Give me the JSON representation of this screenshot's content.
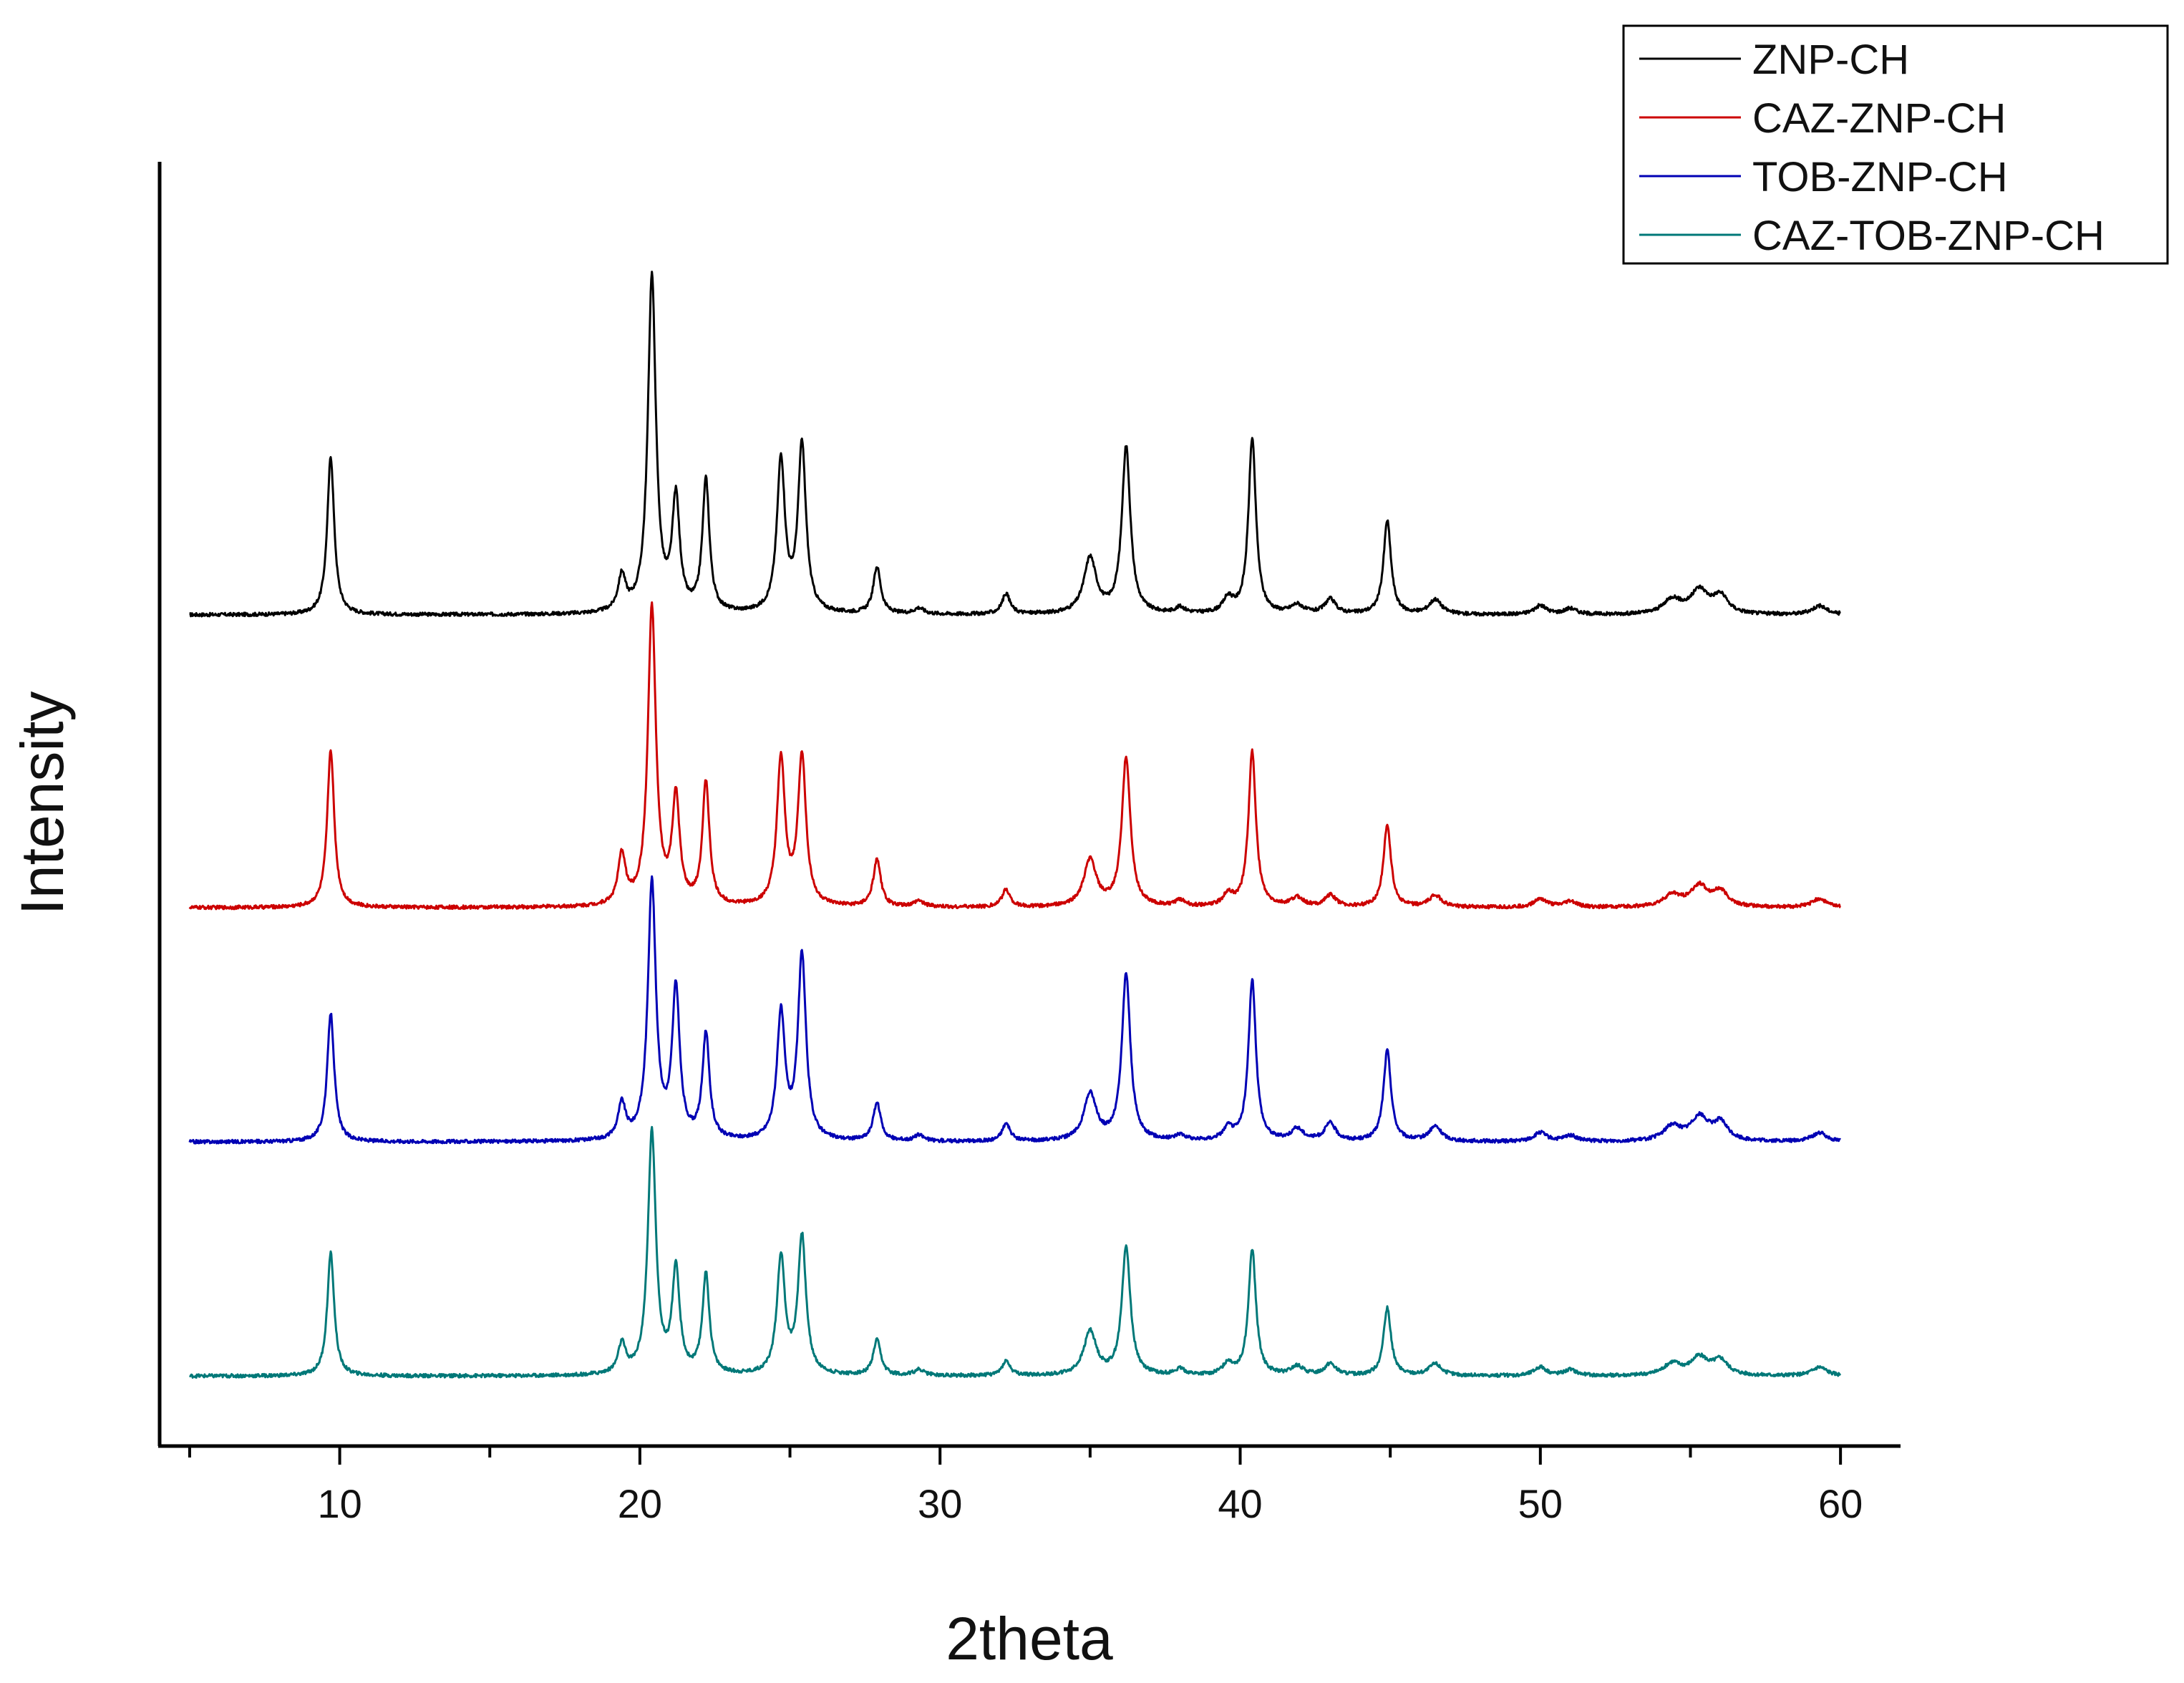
{
  "chart_data": {
    "type": "line",
    "title": "",
    "xlabel": "2theta",
    "ylabel": "Intensity",
    "xlim": [
      4.0,
      62.0
    ],
    "xticks": [
      10,
      20,
      30,
      40,
      50,
      60
    ],
    "x_minor_ticks": [
      5,
      15,
      25,
      35,
      45,
      55
    ],
    "x_tick_labels": [
      "10",
      "20",
      "30",
      "40",
      "50",
      "60"
    ],
    "yticks_shown": false,
    "grid": false,
    "legend_position": "top-right",
    "series": [
      {
        "name": "ZNP-CH",
        "color": "#000000",
        "baseline": 1.0,
        "peaks": [
          [
            9.7,
            0.54,
            0.14
          ],
          [
            19.4,
            0.12,
            0.15
          ],
          [
            20.4,
            1.15,
            0.16
          ],
          [
            21.2,
            0.38,
            0.15
          ],
          [
            22.2,
            0.45,
            0.14
          ],
          [
            24.7,
            0.52,
            0.16
          ],
          [
            25.4,
            0.57,
            0.16
          ],
          [
            27.9,
            0.16,
            0.15
          ],
          [
            29.3,
            0.02,
            0.2
          ],
          [
            32.2,
            0.07,
            0.16
          ],
          [
            35.0,
            0.19,
            0.25
          ],
          [
            36.2,
            0.57,
            0.17
          ],
          [
            38.0,
            0.02,
            0.2
          ],
          [
            39.6,
            0.05,
            0.2
          ],
          [
            40.4,
            0.6,
            0.15
          ],
          [
            41.9,
            0.03,
            0.25
          ],
          [
            43.0,
            0.05,
            0.22
          ],
          [
            44.9,
            0.32,
            0.15
          ],
          [
            46.5,
            0.05,
            0.25
          ],
          [
            50.0,
            0.03,
            0.25
          ],
          [
            51.0,
            0.02,
            0.25
          ],
          [
            54.4,
            0.05,
            0.35
          ],
          [
            55.3,
            0.08,
            0.35
          ],
          [
            56.0,
            0.06,
            0.3
          ],
          [
            59.3,
            0.03,
            0.3
          ]
        ]
      },
      {
        "name": "CAZ-ZNP-CH",
        "color": "#cc0000",
        "baseline": 0.0,
        "peaks": [
          [
            9.7,
            0.54,
            0.14
          ],
          [
            19.4,
            0.17,
            0.15
          ],
          [
            20.4,
            1.02,
            0.16
          ],
          [
            21.2,
            0.36,
            0.15
          ],
          [
            22.2,
            0.42,
            0.14
          ],
          [
            24.7,
            0.5,
            0.16
          ],
          [
            25.4,
            0.51,
            0.16
          ],
          [
            27.9,
            0.16,
            0.15
          ],
          [
            29.3,
            0.02,
            0.2
          ],
          [
            32.2,
            0.06,
            0.16
          ],
          [
            35.0,
            0.16,
            0.25
          ],
          [
            36.2,
            0.51,
            0.17
          ],
          [
            38.0,
            0.02,
            0.2
          ],
          [
            39.6,
            0.04,
            0.2
          ],
          [
            40.4,
            0.53,
            0.15
          ],
          [
            41.9,
            0.03,
            0.25
          ],
          [
            43.0,
            0.04,
            0.22
          ],
          [
            44.9,
            0.28,
            0.15
          ],
          [
            46.5,
            0.04,
            0.25
          ],
          [
            50.0,
            0.03,
            0.25
          ],
          [
            51.0,
            0.02,
            0.25
          ],
          [
            54.4,
            0.04,
            0.35
          ],
          [
            55.3,
            0.07,
            0.35
          ],
          [
            56.0,
            0.05,
            0.3
          ],
          [
            59.3,
            0.03,
            0.3
          ]
        ]
      },
      {
        "name": "TOB-ZNP-CH",
        "color": "#0000b4",
        "baseline": -0.8,
        "peaks": [
          [
            9.7,
            0.44,
            0.14
          ],
          [
            19.4,
            0.12,
            0.15
          ],
          [
            20.4,
            0.88,
            0.16
          ],
          [
            21.2,
            0.51,
            0.15
          ],
          [
            22.2,
            0.36,
            0.14
          ],
          [
            24.7,
            0.43,
            0.16
          ],
          [
            25.4,
            0.63,
            0.16
          ],
          [
            27.9,
            0.13,
            0.15
          ],
          [
            29.3,
            0.02,
            0.2
          ],
          [
            32.2,
            0.06,
            0.16
          ],
          [
            35.0,
            0.16,
            0.25
          ],
          [
            36.2,
            0.57,
            0.17
          ],
          [
            38.0,
            0.02,
            0.2
          ],
          [
            39.6,
            0.04,
            0.2
          ],
          [
            40.4,
            0.55,
            0.15
          ],
          [
            41.9,
            0.04,
            0.25
          ],
          [
            43.0,
            0.06,
            0.22
          ],
          [
            44.9,
            0.31,
            0.15
          ],
          [
            46.5,
            0.05,
            0.25
          ],
          [
            50.0,
            0.03,
            0.25
          ],
          [
            51.0,
            0.02,
            0.25
          ],
          [
            54.4,
            0.05,
            0.35
          ],
          [
            55.3,
            0.08,
            0.35
          ],
          [
            56.0,
            0.06,
            0.3
          ],
          [
            59.3,
            0.03,
            0.3
          ]
        ]
      },
      {
        "name": "CAZ-TOB-ZNP-CH",
        "color": "#007878",
        "baseline": -1.6,
        "peaks": [
          [
            9.7,
            0.42,
            0.14
          ],
          [
            19.4,
            0.1,
            0.15
          ],
          [
            20.4,
            0.83,
            0.16
          ],
          [
            21.2,
            0.35,
            0.15
          ],
          [
            22.2,
            0.34,
            0.14
          ],
          [
            24.7,
            0.4,
            0.16
          ],
          [
            25.4,
            0.47,
            0.16
          ],
          [
            27.9,
            0.12,
            0.15
          ],
          [
            29.3,
            0.02,
            0.2
          ],
          [
            32.2,
            0.05,
            0.16
          ],
          [
            35.0,
            0.15,
            0.25
          ],
          [
            36.2,
            0.44,
            0.17
          ],
          [
            38.0,
            0.02,
            0.2
          ],
          [
            39.6,
            0.04,
            0.2
          ],
          [
            40.4,
            0.43,
            0.15
          ],
          [
            41.9,
            0.03,
            0.25
          ],
          [
            43.0,
            0.04,
            0.22
          ],
          [
            44.9,
            0.23,
            0.15
          ],
          [
            46.5,
            0.04,
            0.25
          ],
          [
            50.0,
            0.03,
            0.25
          ],
          [
            51.0,
            0.02,
            0.25
          ],
          [
            54.4,
            0.04,
            0.35
          ],
          [
            55.3,
            0.06,
            0.35
          ],
          [
            56.0,
            0.05,
            0.3
          ],
          [
            59.3,
            0.03,
            0.3
          ]
        ]
      }
    ],
    "x_range_data": [
      5,
      60
    ],
    "y_range_data": [
      -1.78,
      2.45
    ]
  }
}
